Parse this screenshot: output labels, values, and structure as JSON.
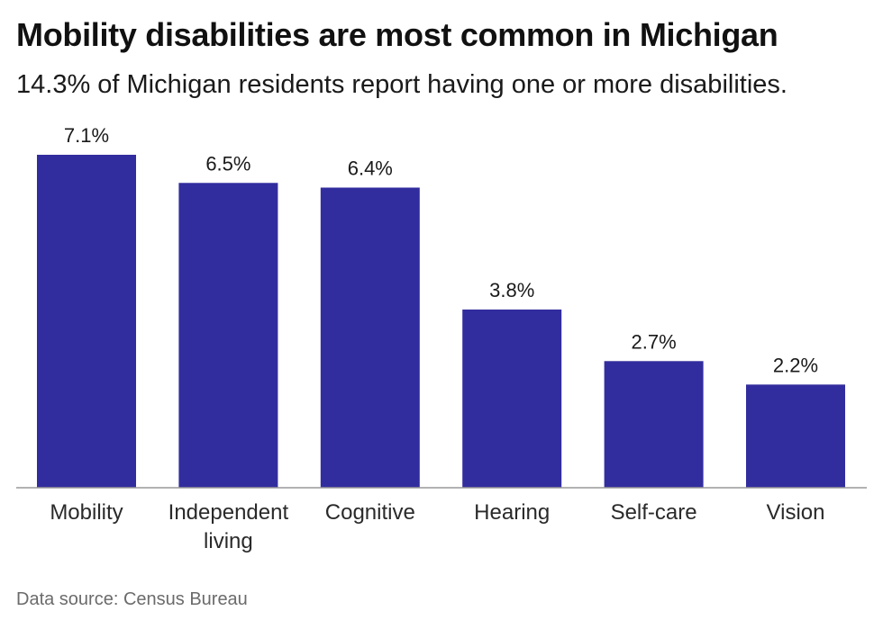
{
  "header": {
    "title": "Mobility disabilities are most common in Michigan",
    "subtitle": "14.3% of Michigan residents report having one or more disabilities."
  },
  "footer": {
    "source": "Data source: Census Bureau"
  },
  "colors": {
    "bar": "#322d9e",
    "axis": "#999999"
  },
  "chart_data": {
    "type": "bar",
    "categories": [
      "Mobility",
      "Independent living",
      "Cognitive",
      "Hearing",
      "Self-care",
      "Vision"
    ],
    "category_lines": [
      [
        "Mobility"
      ],
      [
        "Independent",
        "living"
      ],
      [
        "Cognitive"
      ],
      [
        "Hearing"
      ],
      [
        "Self-care"
      ],
      [
        "Vision"
      ]
    ],
    "values": [
      7.1,
      6.5,
      6.4,
      3.8,
      2.7,
      2.2
    ],
    "value_labels": [
      "7.1%",
      "6.5%",
      "6.4%",
      "3.8%",
      "2.7%",
      "2.2%"
    ],
    "ylim": [
      0,
      7.1
    ],
    "grid": false,
    "legend": "none"
  }
}
